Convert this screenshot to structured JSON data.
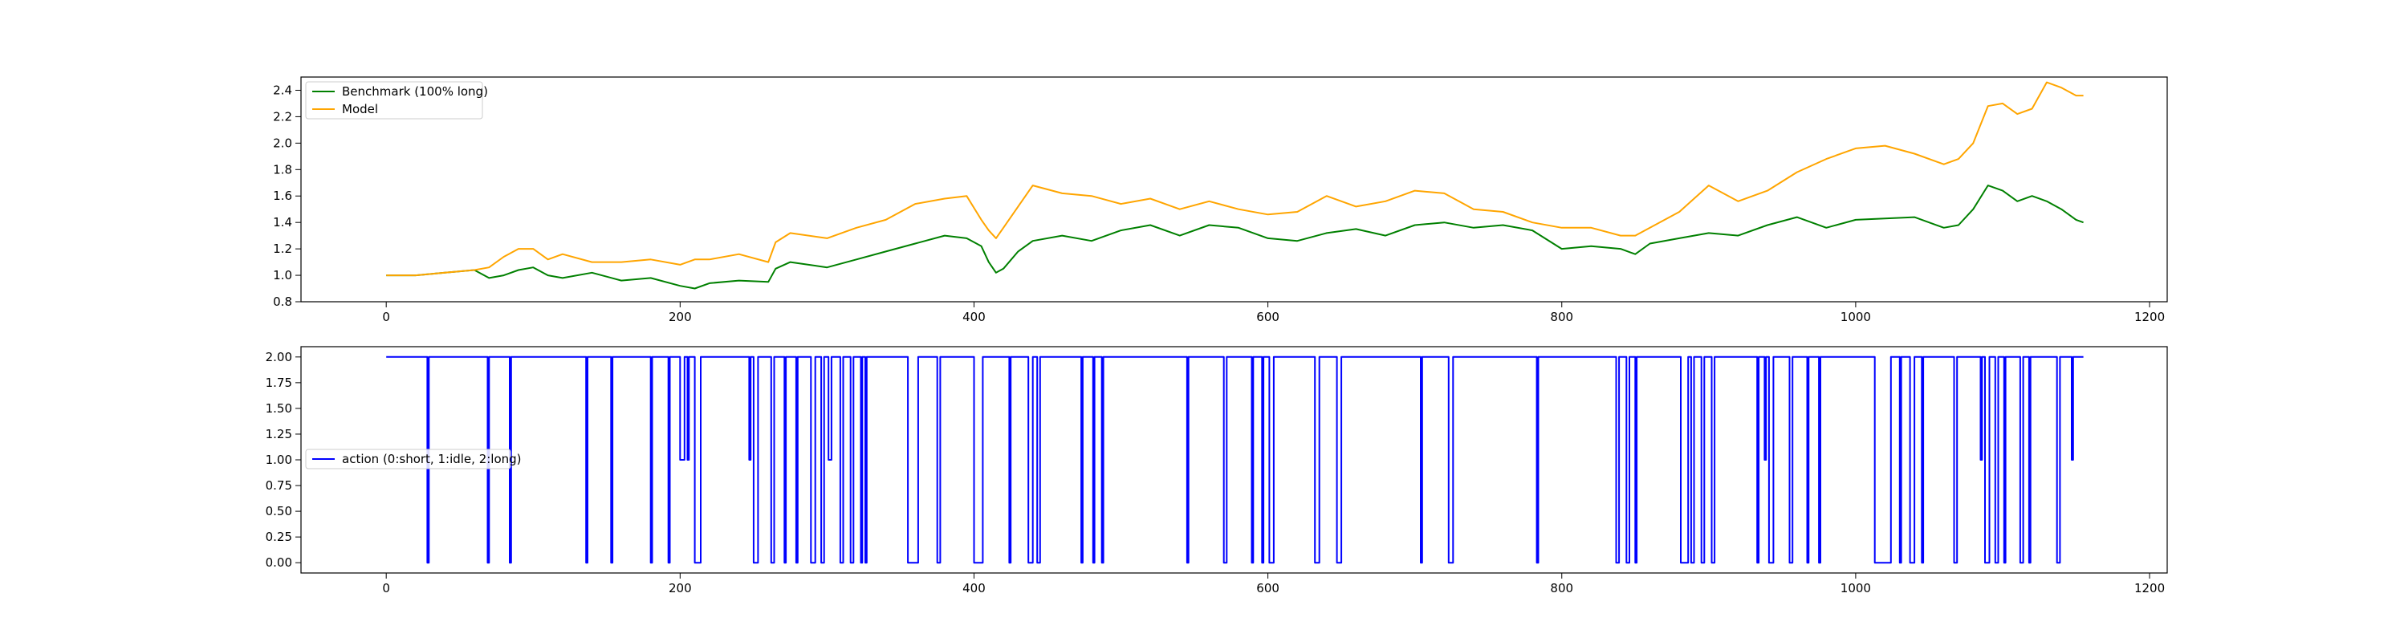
{
  "chart_data": [
    {
      "type": "line",
      "title": "",
      "xlabel": "",
      "ylabel": "",
      "xlim": [
        -58,
        1212
      ],
      "ylim": [
        0.8,
        2.5
      ],
      "xticks": [
        0,
        200,
        400,
        600,
        800,
        1000,
        1200
      ],
      "yticks": [
        0.8,
        1.0,
        1.2,
        1.4,
        1.6,
        1.8,
        2.0,
        2.2,
        2.4
      ],
      "ytick_labels": [
        "0.8",
        "1.0",
        "1.2",
        "1.4",
        "1.6",
        "1.8",
        "2.0",
        "2.2",
        "2.4"
      ],
      "grid": false,
      "legend_position": "upper left",
      "series": [
        {
          "name": "Benchmark (100% long)",
          "color": "#008000",
          "x": [
            0,
            20,
            40,
            60,
            70,
            80,
            90,
            100,
            110,
            120,
            140,
            160,
            180,
            200,
            210,
            220,
            240,
            260,
            265,
            275,
            300,
            320,
            340,
            360,
            380,
            395,
            405,
            410,
            415,
            420,
            430,
            440,
            460,
            480,
            500,
            520,
            540,
            560,
            580,
            600,
            620,
            640,
            660,
            680,
            700,
            720,
            740,
            760,
            780,
            800,
            820,
            840,
            850,
            860,
            880,
            900,
            920,
            940,
            960,
            980,
            1000,
            1020,
            1040,
            1060,
            1070,
            1080,
            1090,
            1100,
            1110,
            1120,
            1130,
            1140,
            1150,
            1155
          ],
          "y": [
            1.0,
            1.0,
            1.02,
            1.04,
            0.98,
            1.0,
            1.04,
            1.06,
            1.0,
            0.98,
            1.02,
            0.96,
            0.98,
            0.92,
            0.9,
            0.94,
            0.96,
            0.95,
            1.05,
            1.1,
            1.06,
            1.12,
            1.18,
            1.24,
            1.3,
            1.28,
            1.22,
            1.1,
            1.02,
            1.05,
            1.18,
            1.26,
            1.3,
            1.26,
            1.34,
            1.38,
            1.3,
            1.38,
            1.36,
            1.28,
            1.26,
            1.32,
            1.35,
            1.3,
            1.38,
            1.4,
            1.36,
            1.38,
            1.34,
            1.2,
            1.22,
            1.2,
            1.16,
            1.24,
            1.28,
            1.32,
            1.3,
            1.38,
            1.44,
            1.36,
            1.42,
            1.43,
            1.44,
            1.36,
            1.38,
            1.5,
            1.68,
            1.64,
            1.56,
            1.6,
            1.56,
            1.5,
            1.42,
            1.4
          ]
        },
        {
          "name": "Model",
          "color": "#ffa500",
          "x": [
            0,
            20,
            40,
            60,
            70,
            80,
            90,
            100,
            110,
            120,
            140,
            160,
            180,
            200,
            210,
            220,
            240,
            260,
            265,
            275,
            300,
            320,
            340,
            360,
            380,
            395,
            405,
            410,
            415,
            420,
            430,
            440,
            460,
            480,
            500,
            520,
            540,
            560,
            580,
            600,
            620,
            640,
            660,
            680,
            700,
            720,
            740,
            760,
            780,
            800,
            820,
            840,
            850,
            860,
            880,
            900,
            920,
            940,
            960,
            980,
            1000,
            1020,
            1040,
            1060,
            1070,
            1080,
            1090,
            1100,
            1110,
            1120,
            1130,
            1140,
            1150,
            1155
          ],
          "y": [
            1.0,
            1.0,
            1.02,
            1.04,
            1.06,
            1.14,
            1.2,
            1.2,
            1.12,
            1.16,
            1.1,
            1.1,
            1.12,
            1.08,
            1.12,
            1.12,
            1.16,
            1.1,
            1.25,
            1.32,
            1.28,
            1.36,
            1.42,
            1.54,
            1.58,
            1.6,
            1.42,
            1.34,
            1.28,
            1.36,
            1.52,
            1.68,
            1.62,
            1.6,
            1.54,
            1.58,
            1.5,
            1.56,
            1.5,
            1.46,
            1.48,
            1.6,
            1.52,
            1.56,
            1.64,
            1.62,
            1.5,
            1.48,
            1.4,
            1.36,
            1.36,
            1.3,
            1.3,
            1.36,
            1.48,
            1.68,
            1.56,
            1.64,
            1.78,
            1.88,
            1.96,
            1.98,
            1.92,
            1.84,
            1.88,
            2.0,
            2.28,
            2.3,
            2.22,
            2.26,
            2.46,
            2.42,
            2.36,
            2.36
          ]
        }
      ]
    },
    {
      "type": "line",
      "title": "",
      "xlabel": "",
      "ylabel": "",
      "xlim": [
        -58,
        1212
      ],
      "ylim": [
        -0.1,
        2.1
      ],
      "xticks": [
        0,
        200,
        400,
        600,
        800,
        1000,
        1200
      ],
      "yticks": [
        0.0,
        0.25,
        0.5,
        0.75,
        1.0,
        1.25,
        1.5,
        1.75,
        2.0
      ],
      "ytick_labels": [
        "0.00",
        "0.25",
        "0.50",
        "0.75",
        "1.00",
        "1.25",
        "1.50",
        "1.75",
        "2.00"
      ],
      "grid": false,
      "legend_position": "center left",
      "series": [
        {
          "name": "action (0:short, 1:idle, 2:long)",
          "color": "#0000ff",
          "changes": [
            [
              0,
              2
            ],
            [
              28,
              0
            ],
            [
              29,
              2
            ],
            [
              69,
              0
            ],
            [
              70,
              2
            ],
            [
              84,
              0
            ],
            [
              85,
              2
            ],
            [
              136,
              0
            ],
            [
              137,
              2
            ],
            [
              153,
              0
            ],
            [
              154,
              2
            ],
            [
              180,
              0
            ],
            [
              181,
              2
            ],
            [
              192,
              0
            ],
            [
              193,
              2
            ],
            [
              200,
              1
            ],
            [
              203,
              2
            ],
            [
              205,
              1
            ],
            [
              206,
              2
            ],
            [
              210,
              0
            ],
            [
              214,
              2
            ],
            [
              247,
              1
            ],
            [
              248,
              2
            ],
            [
              250,
              0
            ],
            [
              253,
              2
            ],
            [
              262,
              0
            ],
            [
              264,
              2
            ],
            [
              271,
              0
            ],
            [
              272,
              2
            ],
            [
              279,
              0
            ],
            [
              280,
              2
            ],
            [
              289,
              0
            ],
            [
              292,
              2
            ],
            [
              296,
              0
            ],
            [
              298,
              2
            ],
            [
              301,
              1
            ],
            [
              303,
              2
            ],
            [
              309,
              0
            ],
            [
              311,
              2
            ],
            [
              316,
              0
            ],
            [
              318,
              2
            ],
            [
              323,
              0
            ],
            [
              324,
              2
            ],
            [
              326,
              0
            ],
            [
              327,
              2
            ],
            [
              355,
              0
            ],
            [
              362,
              2
            ],
            [
              375,
              0
            ],
            [
              377,
              2
            ],
            [
              400,
              0
            ],
            [
              406,
              2
            ],
            [
              424,
              0
            ],
            [
              425,
              2
            ],
            [
              437,
              0
            ],
            [
              440,
              2
            ],
            [
              443,
              0
            ],
            [
              445,
              2
            ],
            [
              473,
              0
            ],
            [
              474,
              2
            ],
            [
              481,
              0
            ],
            [
              482,
              2
            ],
            [
              487,
              0
            ],
            [
              488,
              2
            ],
            [
              545,
              0
            ],
            [
              546,
              2
            ],
            [
              570,
              0
            ],
            [
              572,
              2
            ],
            [
              589,
              0
            ],
            [
              590,
              2
            ],
            [
              596,
              0
            ],
            [
              597,
              2
            ],
            [
              601,
              0
            ],
            [
              604,
              2
            ],
            [
              632,
              0
            ],
            [
              635,
              2
            ],
            [
              647,
              0
            ],
            [
              650,
              2
            ],
            [
              704,
              0
            ],
            [
              705,
              2
            ],
            [
              723,
              0
            ],
            [
              726,
              2
            ],
            [
              783,
              0
            ],
            [
              784,
              2
            ],
            [
              837,
              0
            ],
            [
              839,
              2
            ],
            [
              844,
              0
            ],
            [
              846,
              2
            ],
            [
              850,
              0
            ],
            [
              851,
              2
            ],
            [
              881,
              0
            ],
            [
              886,
              2
            ],
            [
              888,
              0
            ],
            [
              890,
              2
            ],
            [
              895,
              0
            ],
            [
              897,
              2
            ],
            [
              902,
              0
            ],
            [
              904,
              2
            ],
            [
              933,
              0
            ],
            [
              934,
              2
            ],
            [
              938,
              1
            ],
            [
              939,
              2
            ],
            [
              941,
              0
            ],
            [
              944,
              2
            ],
            [
              955,
              0
            ],
            [
              957,
              2
            ],
            [
              967,
              0
            ],
            [
              968,
              2
            ],
            [
              975,
              0
            ],
            [
              976,
              2
            ],
            [
              1013,
              0
            ],
            [
              1024,
              2
            ],
            [
              1030,
              0
            ],
            [
              1031,
              2
            ],
            [
              1037,
              0
            ],
            [
              1040,
              2
            ],
            [
              1045,
              0
            ],
            [
              1046,
              2
            ],
            [
              1067,
              0
            ],
            [
              1069,
              2
            ],
            [
              1085,
              1
            ],
            [
              1086,
              2
            ],
            [
              1088,
              0
            ],
            [
              1091,
              2
            ],
            [
              1095,
              0
            ],
            [
              1097,
              2
            ],
            [
              1101,
              0
            ],
            [
              1102,
              2
            ],
            [
              1112,
              0
            ],
            [
              1114,
              2
            ],
            [
              1118,
              0
            ],
            [
              1119,
              2
            ],
            [
              1137,
              0
            ],
            [
              1139,
              2
            ],
            [
              1147,
              1
            ],
            [
              1148,
              2
            ]
          ],
          "x_end": 1155
        }
      ]
    }
  ]
}
